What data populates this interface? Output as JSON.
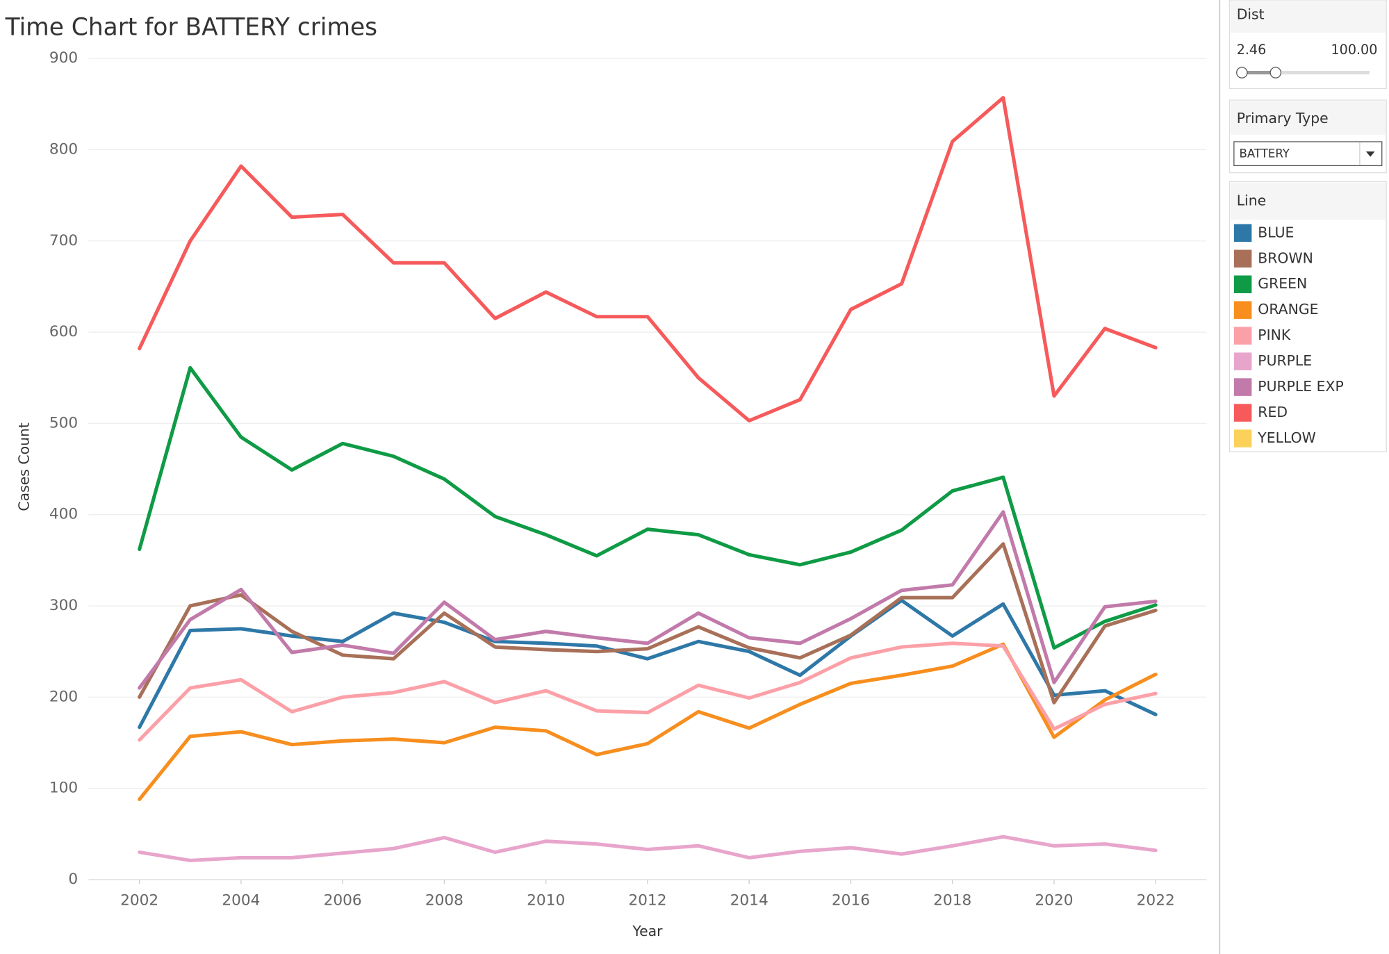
{
  "chart_data": {
    "type": "line",
    "title": "Time Chart for BATTERY crimes",
    "x_label": "Year",
    "y_label": "Cases Count",
    "x": [
      2002,
      2003,
      2004,
      2005,
      2006,
      2007,
      2008,
      2009,
      2010,
      2011,
      2012,
      2013,
      2014,
      2015,
      2016,
      2017,
      2018,
      2019,
      2020,
      2021,
      2022
    ],
    "xlim": [
      2001,
      2023
    ],
    "xticks": [
      2002,
      2004,
      2006,
      2008,
      2010,
      2012,
      2014,
      2016,
      2018,
      2020,
      2022
    ],
    "ylim": [
      0,
      900
    ],
    "yticks": [
      0,
      100,
      200,
      300,
      400,
      500,
      600,
      700,
      800,
      900
    ],
    "grid": true,
    "legend_title": "Line",
    "series": [
      {
        "name": "BLUE",
        "color": "#2e78a8",
        "values": [
          167,
          273,
          275,
          267,
          261,
          292,
          282,
          261,
          259,
          256,
          242,
          261,
          250,
          224,
          267,
          306,
          267,
          302,
          202,
          207,
          181
        ]
      },
      {
        "name": "BROWN",
        "color": "#a87058",
        "values": [
          200,
          300,
          312,
          272,
          246,
          242,
          292,
          255,
          252,
          250,
          253,
          277,
          254,
          243,
          268,
          309,
          309,
          368,
          194,
          278,
          295
        ]
      },
      {
        "name": "GREEN",
        "color": "#0f9b45",
        "values": [
          362,
          561,
          485,
          449,
          478,
          464,
          439,
          398,
          378,
          355,
          384,
          378,
          356,
          345,
          359,
          383,
          426,
          441,
          254,
          283,
          301
        ]
      },
      {
        "name": "ORANGE",
        "color": "#f78e1e",
        "values": [
          88,
          157,
          162,
          148,
          152,
          154,
          150,
          167,
          163,
          137,
          149,
          184,
          166,
          192,
          215,
          224,
          234,
          258,
          156,
          197,
          225
        ]
      },
      {
        "name": "PINK",
        "color": "#fca0a8",
        "values": [
          153,
          210,
          219,
          184,
          200,
          205,
          217,
          194,
          207,
          185,
          183,
          213,
          199,
          216,
          243,
          255,
          259,
          256,
          165,
          192,
          204
        ]
      },
      {
        "name": "PURPLE",
        "color": "#e8a5cc",
        "values": [
          30,
          21,
          24,
          24,
          29,
          34,
          46,
          30,
          42,
          39,
          33,
          37,
          24,
          31,
          35,
          28,
          37,
          47,
          37,
          39,
          32
        ]
      },
      {
        "name": "PURPLE EXP",
        "color": "#c17aa9",
        "values": [
          210,
          285,
          318,
          249,
          257,
          248,
          304,
          263,
          272,
          265,
          259,
          292,
          265,
          259,
          286,
          317,
          323,
          403,
          216,
          299,
          305
        ]
      },
      {
        "name": "RED",
        "color": "#f65a5b",
        "values": [
          582,
          700,
          782,
          726,
          729,
          676,
          676,
          615,
          644,
          617,
          617,
          550,
          503,
          526,
          625,
          653,
          809,
          857,
          530,
          604,
          583
        ]
      },
      {
        "name": "YELLOW",
        "color": "#fcd15a",
        "values": [
          null,
          null,
          null,
          null,
          null,
          null,
          null,
          null,
          null,
          null,
          null,
          null,
          null,
          null,
          null,
          null,
          null,
          null,
          null,
          null,
          null
        ]
      }
    ]
  },
  "filters": {
    "dist": {
      "title": "Dist",
      "min_label": "2.46",
      "max_label": "100.00"
    },
    "primary_type": {
      "title": "Primary Type",
      "selected": "BATTERY"
    }
  }
}
